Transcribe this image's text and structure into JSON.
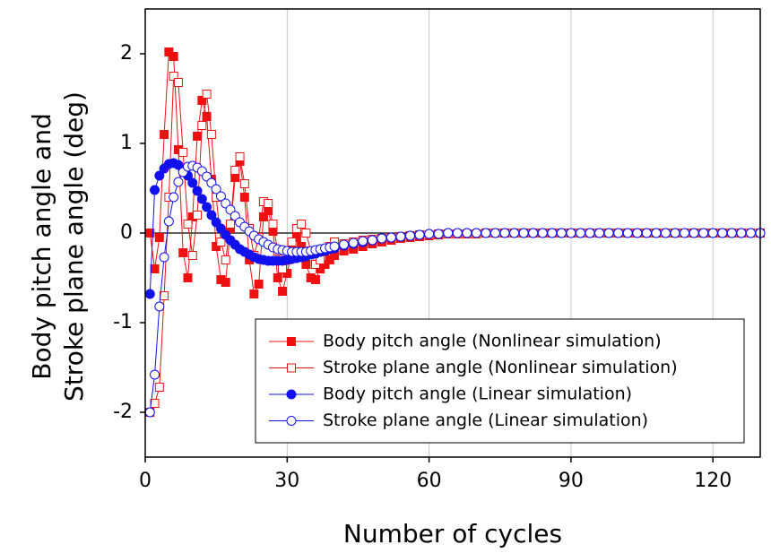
{
  "chart_data": {
    "type": "line",
    "xlabel": "Number of cycles",
    "ylabel": [
      "Body pitch angle and",
      "Stroke plane angle (deg)"
    ],
    "xlim": [
      0,
      130
    ],
    "ylim": [
      -2.5,
      2.5
    ],
    "xticks": [
      0,
      30,
      60,
      90,
      120
    ],
    "yticks": [
      -2,
      -1,
      0,
      1,
      2
    ],
    "grid": "x",
    "zero_line": true,
    "legend": "lower right",
    "x": [
      1,
      2,
      3,
      4,
      5,
      6,
      7,
      8,
      9,
      10,
      11,
      12,
      13,
      14,
      15,
      16,
      17,
      18,
      19,
      20,
      21,
      22,
      23,
      24,
      25,
      26,
      27,
      28,
      29,
      30,
      31,
      32,
      33,
      34,
      35,
      36,
      37,
      38,
      39,
      40,
      42,
      44,
      46,
      48,
      50,
      52,
      54,
      56,
      58,
      60,
      62,
      64,
      66,
      68,
      70,
      72,
      74,
      76,
      78,
      80,
      82,
      84,
      86,
      88,
      90,
      92,
      94,
      96,
      98,
      100,
      102,
      104,
      106,
      108,
      110,
      112,
      114,
      116,
      118,
      120,
      122,
      124,
      126,
      128,
      130
    ],
    "series": [
      {
        "name": "Body pitch angle (Nonlinear simulation)",
        "color": "#ee1111",
        "marker": "square",
        "filled": true,
        "values": [
          0,
          -0.4,
          -0.05,
          1.1,
          2.02,
          1.97,
          0.93,
          -0.22,
          -0.5,
          0.18,
          1.08,
          1.48,
          1.3,
          0.6,
          -0.15,
          -0.52,
          -0.55,
          0.05,
          0.62,
          0.8,
          0.4,
          -0.3,
          -0.68,
          -0.57,
          0.18,
          0.25,
          0.02,
          -0.5,
          -0.65,
          -0.45,
          -0.2,
          -0.05,
          -0.15,
          -0.35,
          -0.5,
          -0.52,
          -0.4,
          -0.35,
          -0.3,
          -0.25,
          -0.2,
          -0.18,
          -0.15,
          -0.12,
          -0.1,
          -0.08,
          -0.06,
          -0.05,
          -0.04,
          -0.03,
          -0.02,
          -0.01,
          -0.01,
          -0.01,
          -0.01,
          0,
          0,
          0,
          0,
          0,
          0,
          0,
          0,
          0,
          0,
          0,
          0,
          0,
          0,
          0,
          0,
          0,
          0,
          0,
          0,
          0,
          0,
          0,
          0,
          0,
          0,
          0,
          0,
          0,
          0
        ]
      },
      {
        "name": "Stroke plane angle (Nonlinear simulation)",
        "color": "#ee1111",
        "marker": "square",
        "filled": false,
        "values": [
          -2,
          -1.9,
          -1.72,
          -0.7,
          0.4,
          1.75,
          1.68,
          0.9,
          0.1,
          -0.25,
          0.2,
          1.2,
          1.55,
          1.1,
          0.4,
          -0.1,
          -0.3,
          0.1,
          0.7,
          0.85,
          0.55,
          0.05,
          -0.25,
          -0.05,
          0.35,
          0.33,
          0.1,
          -0.2,
          -0.4,
          -0.3,
          -0.1,
          0.05,
          0.1,
          0,
          -0.2,
          -0.35,
          -0.3,
          -0.2,
          -0.15,
          -0.1,
          -0.12,
          -0.1,
          -0.08,
          -0.07,
          -0.06,
          -0.05,
          -0.04,
          -0.03,
          -0.02,
          -0.02,
          -0.01,
          -0.01,
          -0.01,
          -0.01,
          -0.01,
          0,
          0,
          0,
          0,
          0,
          0,
          0,
          0,
          0,
          0,
          0,
          0,
          0,
          0,
          0,
          0,
          0,
          0,
          0,
          0,
          0,
          0,
          0,
          0,
          0,
          0,
          0,
          0,
          0,
          0
        ]
      },
      {
        "name": "Body pitch angle (Linear simulation)",
        "color": "#1111ee",
        "marker": "circle",
        "filled": true,
        "values": [
          -0.68,
          0.48,
          0.64,
          0.72,
          0.77,
          0.78,
          0.76,
          0.71,
          0.64,
          0.56,
          0.47,
          0.38,
          0.29,
          0.2,
          0.12,
          0.05,
          -0.02,
          -0.08,
          -0.13,
          -0.18,
          -0.21,
          -0.24,
          -0.27,
          -0.29,
          -0.3,
          -0.31,
          -0.31,
          -0.31,
          -0.31,
          -0.3,
          -0.29,
          -0.28,
          -0.27,
          -0.26,
          -0.24,
          -0.23,
          -0.21,
          -0.2,
          -0.18,
          -0.17,
          -0.14,
          -0.12,
          -0.1,
          -0.08,
          -0.06,
          -0.05,
          -0.04,
          -0.03,
          -0.02,
          -0.01,
          -0.01,
          0,
          0,
          0,
          0,
          0,
          0,
          0,
          0,
          0,
          0,
          0,
          0,
          0,
          0,
          0,
          0,
          0,
          0,
          0,
          0,
          0,
          0,
          0,
          0,
          0,
          0,
          0,
          0,
          0,
          0,
          0,
          0,
          0,
          0
        ]
      },
      {
        "name": "Stroke plane angle (Linear simulation)",
        "color": "#1111ee",
        "marker": "circle",
        "filled": false,
        "values": [
          -2,
          -1.58,
          -0.82,
          -0.27,
          0.13,
          0.4,
          0.57,
          0.68,
          0.74,
          0.75,
          0.73,
          0.69,
          0.63,
          0.56,
          0.49,
          0.41,
          0.33,
          0.26,
          0.19,
          0.12,
          0.07,
          0.02,
          -0.03,
          -0.07,
          -0.1,
          -0.13,
          -0.16,
          -0.18,
          -0.19,
          -0.2,
          -0.21,
          -0.21,
          -0.21,
          -0.21,
          -0.2,
          -0.19,
          -0.18,
          -0.17,
          -0.16,
          -0.15,
          -0.13,
          -0.11,
          -0.09,
          -0.08,
          -0.06,
          -0.05,
          -0.04,
          -0.03,
          -0.02,
          -0.01,
          -0.01,
          0,
          0,
          0,
          0,
          0,
          0,
          0,
          0,
          0,
          0,
          0,
          0,
          0,
          0,
          0,
          0,
          0,
          0,
          0,
          0,
          0,
          0,
          0,
          0,
          0,
          0,
          0,
          0,
          0,
          0,
          0,
          0,
          0,
          0
        ]
      }
    ]
  }
}
